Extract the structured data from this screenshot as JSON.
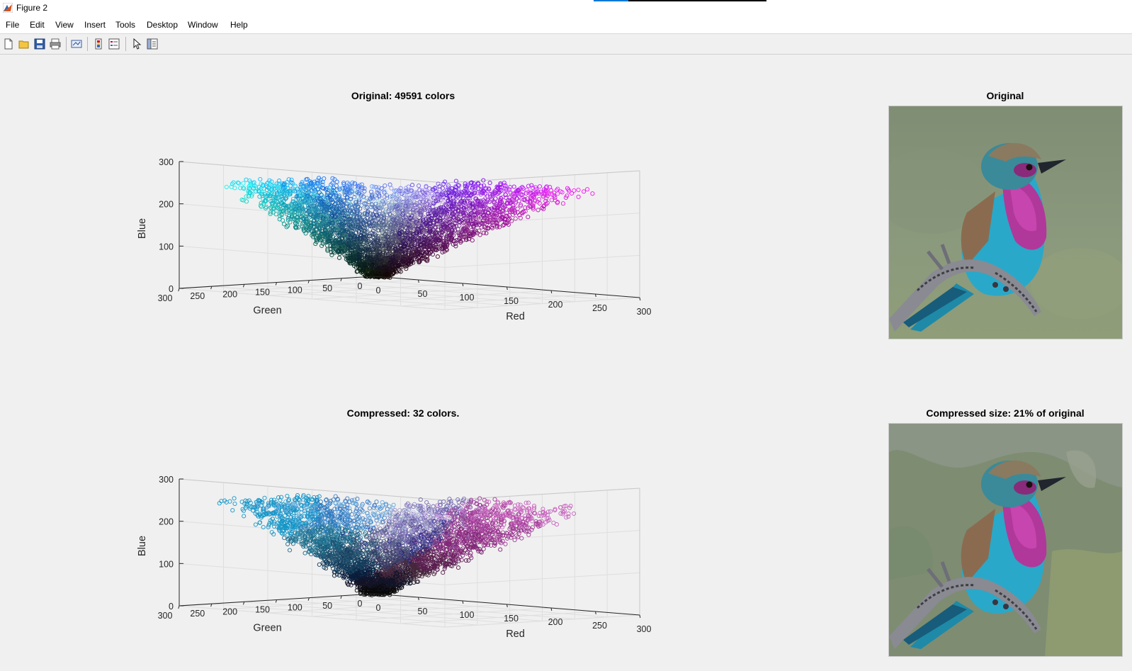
{
  "window": {
    "title": "Figure 2",
    "progress": 0.2
  },
  "menu": [
    "File",
    "Edit",
    "View",
    "Insert",
    "Tools",
    "Desktop",
    "Window",
    "Help"
  ],
  "toolbar_icons": [
    "new-figure-icon",
    "open-file-icon",
    "save-icon",
    "print-icon",
    "link-plot-icon",
    "insert-colorbar-icon",
    "insert-legend-icon",
    "edit-plot-icon",
    "property-inspector-icon"
  ],
  "plots": {
    "top_scatter": {
      "title": "Original: 49591 colors"
    },
    "bottom_scatter": {
      "title": "Compressed: 32 colors."
    },
    "top_image": {
      "title": "Original"
    },
    "bottom_image": {
      "title": "Compressed size: 21% of original"
    }
  },
  "chart_data": [
    {
      "type": "scatter",
      "subtype": "3d",
      "title": "Original: 49591 colors",
      "xlabel": "Red",
      "ylabel": "Green",
      "zlabel": "Blue",
      "xlim": [
        0,
        300
      ],
      "ylim": [
        0,
        300
      ],
      "zlim": [
        0,
        300
      ],
      "x_ticks": [
        0,
        50,
        100,
        150,
        200,
        250,
        300
      ],
      "y_ticks": [
        0,
        50,
        100,
        150,
        200,
        250,
        300
      ],
      "z_ticks": [
        0,
        100,
        200,
        300
      ],
      "grid": true,
      "points": 49591,
      "marker": "circle"
    },
    {
      "type": "scatter",
      "subtype": "3d",
      "title": "Compressed: 32 colors.",
      "xlabel": "Red",
      "ylabel": "Green",
      "zlabel": "Blue",
      "xlim": [
        0,
        300
      ],
      "ylim": [
        0,
        300
      ],
      "zlim": [
        0,
        300
      ],
      "x_ticks": [
        0,
        50,
        100,
        150,
        200,
        250,
        300
      ],
      "y_ticks": [
        0,
        50,
        100,
        150,
        200,
        250,
        300
      ],
      "z_ticks": [
        0,
        100,
        200,
        300
      ],
      "grid": true,
      "clusters": 32,
      "marker": "circle"
    }
  ]
}
